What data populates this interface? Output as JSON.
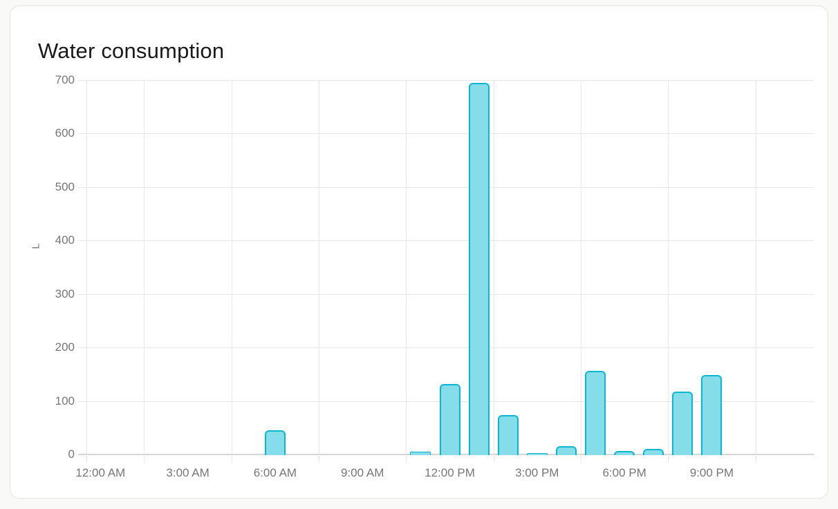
{
  "card": {
    "title": "Water consumption"
  },
  "chart_data": {
    "type": "bar",
    "title": "Water consumption",
    "xlabel": "",
    "ylabel": "L",
    "unit": "L",
    "ylim": [
      0,
      700
    ],
    "y_ticks": [
      0,
      100,
      200,
      300,
      400,
      500,
      600,
      700
    ],
    "x_tick_labels": [
      "12:00 AM",
      "3:00 AM",
      "6:00 AM",
      "9:00 AM",
      "12:00 PM",
      "3:00 PM",
      "6:00 PM",
      "9:00 PM"
    ],
    "x_hours": [
      0,
      1,
      2,
      3,
      4,
      5,
      6,
      7,
      8,
      9,
      10,
      11,
      12,
      13,
      14,
      15,
      16,
      17,
      18,
      19,
      20,
      21,
      22,
      23
    ],
    "series": [
      {
        "name": "Water consumption",
        "values": [
          0,
          0,
          0,
          0,
          0,
          0,
          45,
          0,
          0,
          0,
          0,
          5,
          132,
          694,
          73,
          2,
          16,
          156,
          7,
          10,
          118,
          149,
          0,
          0
        ]
      }
    ],
    "grid": "on",
    "legend": "none",
    "colors": {
      "bar_fill": "#85dde9",
      "bar_border": "#0bb7d0",
      "grid_line": "#e7e7e7",
      "zero_line": "#d6d6d6",
      "tick_label": "#767676",
      "title_text": "#1a1a1a",
      "card_bg": "#ffffff",
      "card_border": "#e5e3e0",
      "page_bg": "#f9f9f7"
    }
  }
}
